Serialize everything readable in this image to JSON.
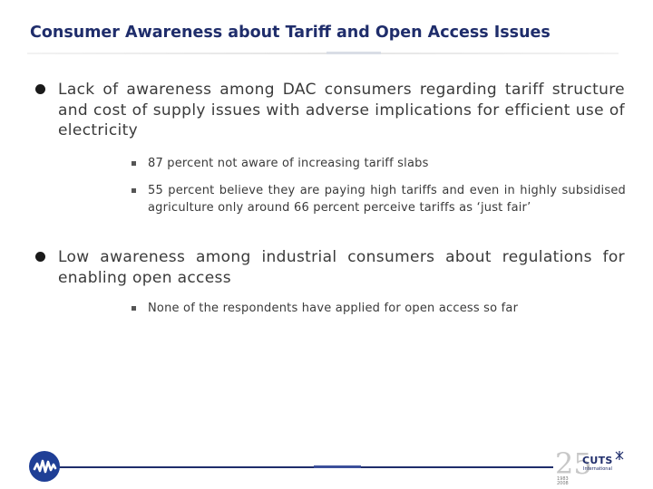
{
  "title": "Consumer Awareness about Tariff and Open Access Issues",
  "bullets": [
    {
      "text": "Lack of awareness among DAC consumers regarding tariff structure and cost of supply issues with adverse implications for efficient use of electricity",
      "sub_items": [
        "87 percent not aware of increasing tariff slabs",
        "55 percent believe they are paying high tariffs and even in highly subsidised agriculture only around 66 percent perceive tariffs as ‘just fair’"
      ]
    },
    {
      "text": "Low awareness among industrial consumers about regulations for enabling open access",
      "sub_items": [
        "None of the respondents have applied for open access so far"
      ]
    }
  ],
  "footer": {
    "left_logo_icon": "wave-logo-icon",
    "brand_number": "25",
    "brand_years_top": "1983",
    "brand_years_bottom": "2008",
    "brand_name": "CUTS",
    "brand_subtitle": "International",
    "brand_mark_icon": "cuts-mark-icon"
  },
  "colors": {
    "title": "#1f2d6b",
    "footer_rule": "#1f2d6b",
    "left_logo": "#1f3f96",
    "text": "#3a3a3a"
  }
}
